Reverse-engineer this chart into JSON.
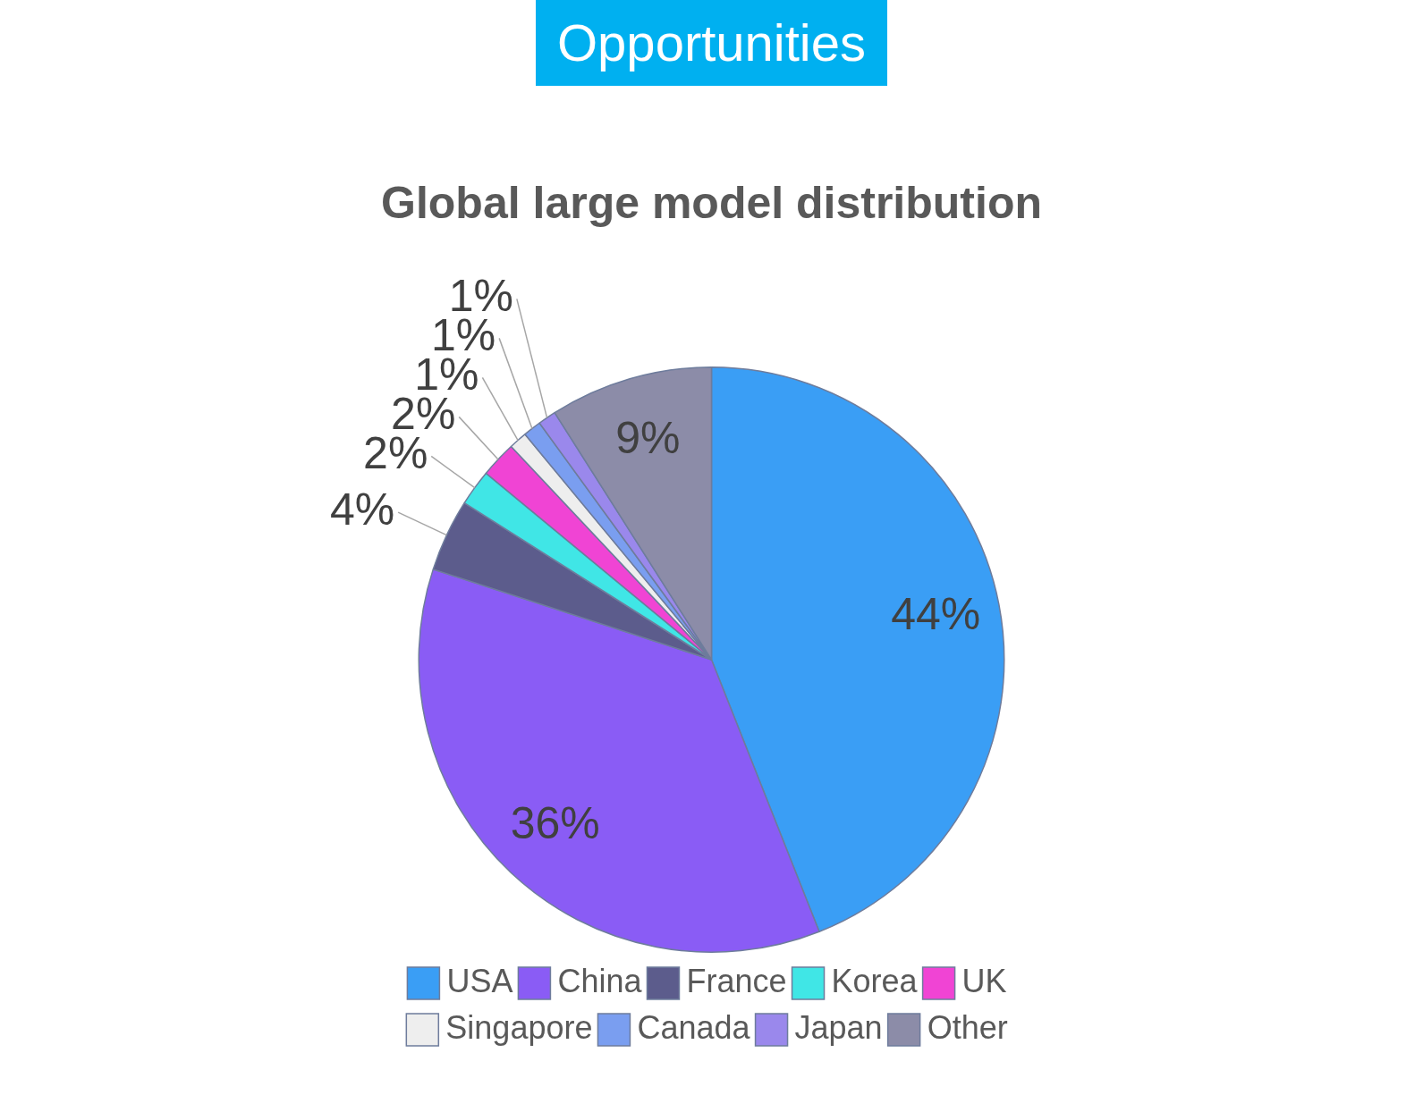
{
  "chart_data": {
    "type": "pie",
    "title": "Global large model distribution",
    "annotations": [
      "Opportunities"
    ],
    "categories": [
      "USA",
      "China",
      "France",
      "Korea",
      "UK",
      "Singapore",
      "Canada",
      "Japan",
      "Other"
    ],
    "values": [
      44,
      36,
      4,
      2,
      2,
      1,
      1,
      1,
      9
    ],
    "colors": [
      "#3a9ef5",
      "#8a5cf5",
      "#5c5c8c",
      "#40e6e6",
      "#f044d4",
      "#eeeeee",
      "#7a9ef0",
      "#9a88ec",
      "#8c8ca8"
    ],
    "value_labels": [
      "44%",
      "36%",
      "4%",
      "2%",
      "2%",
      "1%",
      "1%",
      "1%",
      "9%"
    ],
    "legend": "bottom"
  }
}
